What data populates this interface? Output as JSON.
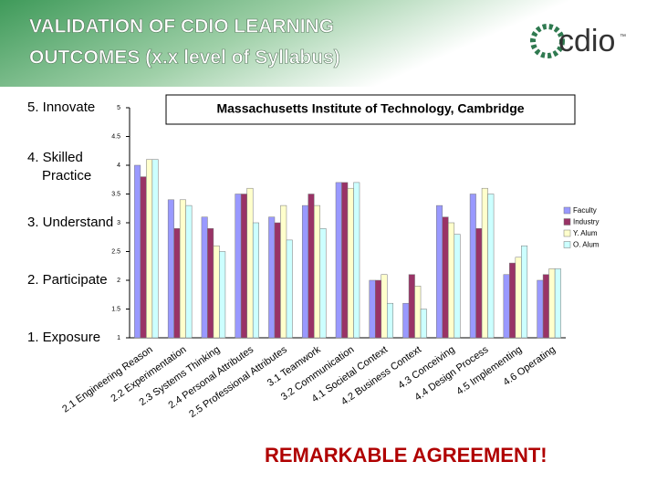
{
  "slide": {
    "title": [
      "VALIDATION OF CDIO LEARNING",
      "OUTCOMES (x.x level of Syllabus)"
    ],
    "logo": "cdio",
    "logo_mark": "™",
    "footer": "REMARKABLE AGREEMENT!"
  },
  "chart_data": {
    "type": "bar",
    "title": "Massachusetts Institute of Technology, Cambridge",
    "categories": [
      "2.1 Engineering Reason",
      "2.2 Experimentation",
      "2.3 Systems Thinking",
      "2.4 Personal Attributes",
      "2.5 Professional Attributes",
      "3.1 Teamwork",
      "3.2 Communication",
      "4.1 Societal Context",
      "4.2 Business Context",
      "4.3 Conceiving",
      "4.4 Design Process",
      "4.5 Implementing",
      "4.6 Operating"
    ],
    "series": [
      {
        "name": "Faculty",
        "color": "#9999ff",
        "values": [
          4.0,
          3.4,
          3.1,
          3.5,
          3.1,
          3.3,
          3.7,
          2.0,
          1.6,
          3.3,
          3.5,
          2.1,
          2.0
        ]
      },
      {
        "name": "Industry",
        "color": "#993366",
        "values": [
          3.8,
          2.9,
          2.9,
          3.5,
          3.0,
          3.5,
          3.7,
          2.0,
          2.1,
          3.1,
          2.9,
          2.3,
          2.1
        ]
      },
      {
        "name": "Y. Alum",
        "color": "#ffffcc",
        "values": [
          4.1,
          3.4,
          2.6,
          3.6,
          3.3,
          3.3,
          3.6,
          2.1,
          1.9,
          3.0,
          3.6,
          2.4,
          2.2
        ]
      },
      {
        "name": "O. Alum",
        "color": "#ccffff",
        "values": [
          4.1,
          3.3,
          2.5,
          3.0,
          2.7,
          2.9,
          3.7,
          1.6,
          1.5,
          2.8,
          3.5,
          2.6,
          2.2
        ]
      }
    ],
    "ylim": [
      1,
      5
    ],
    "yticks": [
      1,
      1.5,
      2,
      2.5,
      3,
      3.5,
      4,
      4.5,
      5
    ],
    "level_labels": [
      {
        "value": 5,
        "label": "5. Innovate"
      },
      {
        "value": 4,
        "label": "4. Skilled Practice"
      },
      {
        "value": 3,
        "label": "3. Understand"
      },
      {
        "value": 2,
        "label": "2. Participate"
      },
      {
        "value": 1,
        "label": "1. Exposure"
      }
    ],
    "legend": "right",
    "grid": false
  }
}
